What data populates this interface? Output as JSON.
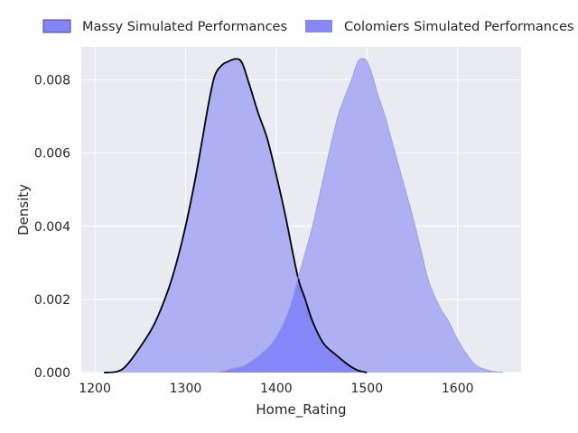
{
  "chart_data": {
    "type": "area",
    "xlabel": "Home_Rating",
    "ylabel": "Density",
    "xlim": [
      1185,
      1670
    ],
    "ylim": [
      0,
      0.0089
    ],
    "x_ticks": [
      1200,
      1300,
      1400,
      1500,
      1600
    ],
    "x_tick_labels": [
      "1200",
      "1300",
      "1400",
      "1500",
      "1600"
    ],
    "y_ticks": [
      0,
      0.002,
      0.004,
      0.006,
      0.008
    ],
    "y_tick_labels": [
      "0.000",
      "0.002",
      "0.004",
      "0.006",
      "0.008"
    ],
    "grid": true,
    "legend_position": "top",
    "series": [
      {
        "name": "Massy Simulated Performances",
        "fill": "#aeb0f4",
        "line": "#000000",
        "points": [
          [
            1210,
            0
          ],
          [
            1225,
            3e-05
          ],
          [
            1235,
            0.0002
          ],
          [
            1250,
            0.0007
          ],
          [
            1265,
            0.0013
          ],
          [
            1280,
            0.0022
          ],
          [
            1290,
            0.003
          ],
          [
            1300,
            0.004
          ],
          [
            1310,
            0.0052
          ],
          [
            1318,
            0.0063
          ],
          [
            1325,
            0.0073
          ],
          [
            1332,
            0.0081
          ],
          [
            1340,
            0.0084
          ],
          [
            1347,
            0.0085
          ],
          [
            1355,
            0.00857
          ],
          [
            1362,
            0.00848
          ],
          [
            1370,
            0.0079
          ],
          [
            1380,
            0.0071
          ],
          [
            1390,
            0.0064
          ],
          [
            1400,
            0.0054
          ],
          [
            1410,
            0.0043
          ],
          [
            1418,
            0.0033
          ],
          [
            1425,
            0.0025
          ],
          [
            1432,
            0.002
          ],
          [
            1440,
            0.0014
          ],
          [
            1452,
            0.0008
          ],
          [
            1465,
            0.0005
          ],
          [
            1480,
            0.0002
          ],
          [
            1490,
            6e-05
          ],
          [
            1500,
            0
          ]
        ]
      },
      {
        "name": "Colomiers Simulated Performances",
        "fill": "#aeb0f4",
        "line": "#9ea2d8",
        "points": [
          [
            1335,
            0
          ],
          [
            1350,
            0.0001
          ],
          [
            1365,
            0.0002
          ],
          [
            1380,
            0.00045
          ],
          [
            1395,
            0.0008
          ],
          [
            1405,
            0.0012
          ],
          [
            1415,
            0.0018
          ],
          [
            1422,
            0.0024
          ],
          [
            1430,
            0.0031
          ],
          [
            1440,
            0.004
          ],
          [
            1450,
            0.0051
          ],
          [
            1460,
            0.0062
          ],
          [
            1468,
            0.007
          ],
          [
            1475,
            0.0075
          ],
          [
            1483,
            0.008
          ],
          [
            1490,
            0.0085
          ],
          [
            1496,
            0.00858
          ],
          [
            1500,
            0.0085
          ],
          [
            1505,
            0.0082
          ],
          [
            1512,
            0.0076
          ],
          [
            1520,
            0.007
          ],
          [
            1530,
            0.0061
          ],
          [
            1540,
            0.0052
          ],
          [
            1550,
            0.0043
          ],
          [
            1560,
            0.0033
          ],
          [
            1568,
            0.0025
          ],
          [
            1580,
            0.0018
          ],
          [
            1590,
            0.0014
          ],
          [
            1600,
            0.0009
          ],
          [
            1610,
            0.0005
          ],
          [
            1620,
            0.0002
          ],
          [
            1635,
            5e-05
          ],
          [
            1650,
            0
          ]
        ]
      }
    ],
    "overlap_color": "#8586f7"
  }
}
